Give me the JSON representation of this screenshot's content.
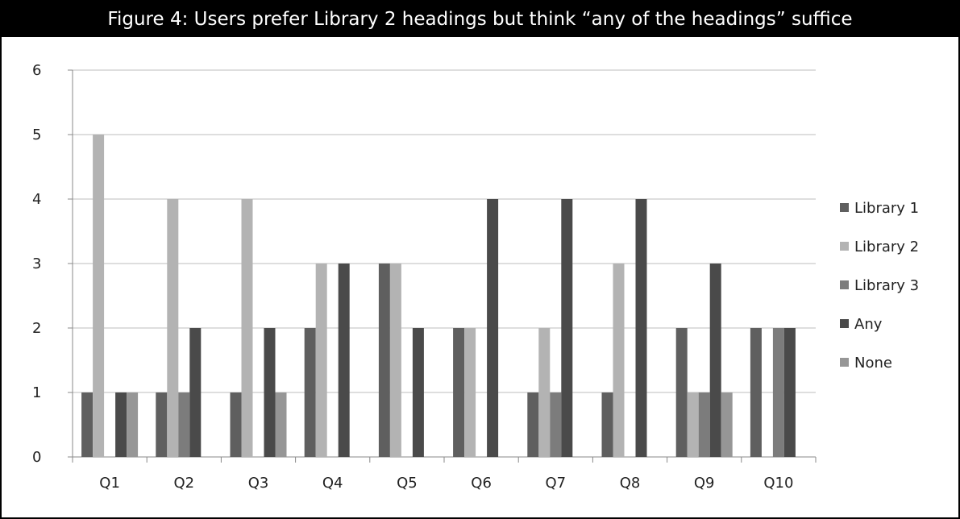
{
  "chart_data": {
    "type": "bar",
    "title": "Figure 4: Users prefer Library 2 headings but think “any of the headings” suffice",
    "categories": [
      "Q1",
      "Q2",
      "Q3",
      "Q4",
      "Q5",
      "Q6",
      "Q7",
      "Q8",
      "Q9",
      "Q10"
    ],
    "series": [
      {
        "name": "Library 1",
        "color": "#5f5f5f",
        "values": [
          1,
          1,
          1,
          2,
          3,
          2,
          1,
          1,
          2,
          2
        ]
      },
      {
        "name": "Library 2",
        "color": "#b3b3b3",
        "values": [
          5,
          4,
          4,
          3,
          3,
          2,
          2,
          3,
          1,
          0
        ]
      },
      {
        "name": "Library 3",
        "color": "#7c7c7c",
        "values": [
          0,
          1,
          0,
          0,
          0,
          0,
          1,
          0,
          1,
          2
        ]
      },
      {
        "name": "Any",
        "color": "#4a4a4a",
        "values": [
          1,
          2,
          2,
          3,
          2,
          4,
          4,
          4,
          3,
          2
        ]
      },
      {
        "name": "None",
        "color": "#969696",
        "values": [
          1,
          0,
          1,
          0,
          0,
          0,
          0,
          0,
          1,
          0
        ]
      }
    ],
    "ylim": [
      0,
      6
    ],
    "yticks": [
      0,
      1,
      2,
      3,
      4,
      5,
      6
    ],
    "xlabel": "",
    "ylabel": "",
    "grid": true,
    "legend_position": "right"
  }
}
